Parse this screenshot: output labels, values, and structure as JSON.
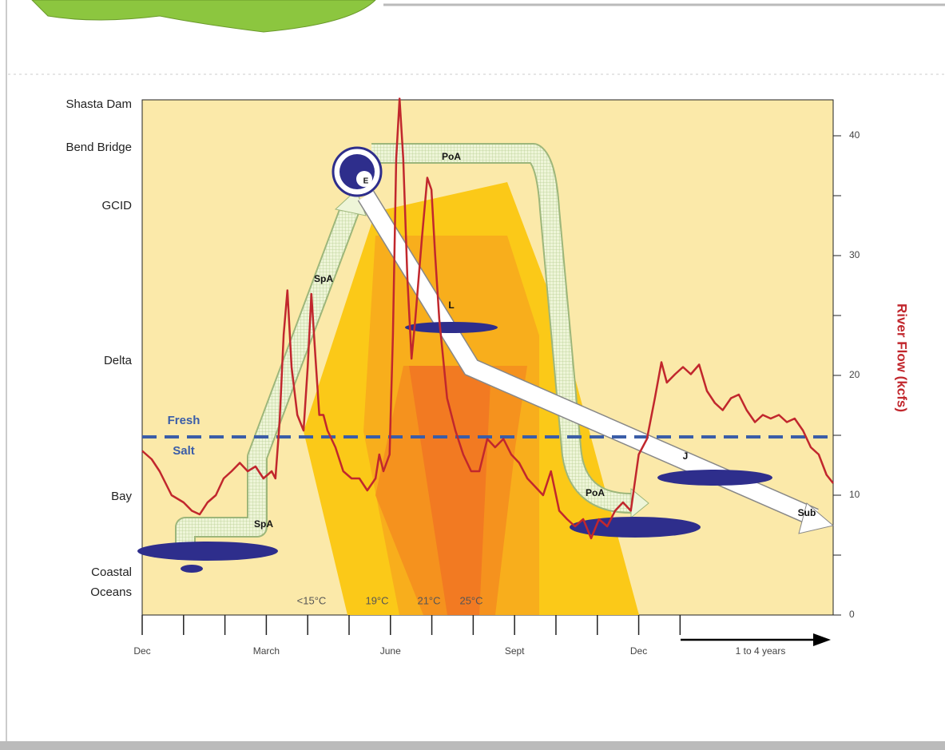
{
  "chart_data": {
    "type": "line",
    "color": "#c1272d",
    "ylabel": "River Flow (kcfs)",
    "ylim": [
      0,
      43
    ],
    "yticks": [
      0,
      10,
      20,
      30,
      40
    ],
    "yminorticks": [
      5,
      15,
      25,
      35
    ],
    "xlim": [
      0,
      16.7
    ],
    "xticks": [
      {
        "value": 0,
        "label": "Dec"
      },
      {
        "value": 3,
        "label": "March"
      },
      {
        "value": 6,
        "label": "June"
      },
      {
        "value": 9,
        "label": "Sept"
      },
      {
        "value": 12,
        "label": "Dec"
      }
    ],
    "xminorticks": [
      1,
      2,
      4,
      5,
      7,
      8,
      10,
      11,
      13
    ],
    "x_note": "1 to 4 years",
    "locations": [
      "Shasta Dam",
      "Bend Bridge",
      "GCID",
      "Delta",
      "Bay",
      "Coastal Oceans"
    ],
    "salinity_labels": [
      "Fresh",
      "Salt"
    ],
    "temperature_labels": [
      "<15°C",
      "19°C",
      "21°C",
      "25°C"
    ],
    "stage_labels": [
      "SpA",
      "SpA",
      "PoA",
      "PoA",
      "E",
      "L",
      "J",
      "Sub"
    ],
    "x": [
      0,
      0.23,
      0.42,
      0.71,
      1.0,
      1.2,
      1.39,
      1.58,
      1.78,
      1.97,
      2.16,
      2.36,
      2.55,
      2.74,
      2.93,
      3.13,
      3.22,
      3.32,
      3.42,
      3.51,
      3.61,
      3.75,
      3.9,
      4.0,
      4.09,
      4.19,
      4.28,
      4.38,
      4.48,
      4.67,
      4.86,
      5.06,
      5.25,
      5.44,
      5.64,
      5.73,
      5.83,
      5.98,
      6.06,
      6.14,
      6.22,
      6.31,
      6.41,
      6.51,
      6.6,
      6.76,
      6.89,
      6.99,
      7.08,
      7.18,
      7.37,
      7.57,
      7.76,
      7.95,
      8.15,
      8.34,
      8.53,
      8.73,
      8.92,
      9.11,
      9.31,
      9.5,
      9.69,
      9.88,
      10.08,
      10.27,
      10.46,
      10.66,
      10.85,
      11.04,
      11.24,
      11.43,
      11.62,
      11.81,
      12.0,
      12.2,
      12.39,
      12.55,
      12.68,
      12.88,
      13.07,
      13.26,
      13.46,
      13.65,
      13.84,
      14.03,
      14.23,
      14.42,
      14.61,
      14.81,
      15.0,
      15.19,
      15.39,
      15.58,
      15.77,
      15.97,
      16.16,
      16.35,
      16.54,
      16.7
    ],
    "values": [
      13.7,
      13.0,
      12.0,
      10.0,
      9.4,
      8.7,
      8.4,
      9.4,
      10.0,
      11.4,
      12.0,
      12.7,
      12.0,
      12.4,
      11.4,
      12.0,
      11.4,
      16.1,
      23.4,
      27.1,
      20.7,
      16.7,
      15.4,
      20.7,
      26.8,
      21.4,
      16.7,
      16.7,
      15.4,
      14.0,
      12.0,
      11.4,
      11.4,
      10.4,
      11.4,
      13.4,
      12.0,
      13.4,
      23.4,
      38.1,
      43.1,
      38.1,
      28.1,
      21.4,
      24.7,
      31.4,
      36.5,
      35.5,
      30.1,
      24.7,
      18.1,
      15.4,
      13.4,
      12.0,
      12.0,
      14.7,
      14.0,
      14.7,
      13.4,
      12.7,
      11.4,
      10.7,
      10.0,
      12.0,
      8.7,
      8.0,
      7.4,
      8.0,
      6.4,
      8.0,
      7.4,
      8.7,
      9.4,
      8.7,
      13.4,
      14.7,
      18.1,
      21.1,
      19.4,
      20.1,
      20.7,
      20.1,
      20.9,
      18.7,
      17.7,
      17.1,
      18.1,
      18.4,
      17.1,
      16.1,
      16.7,
      16.4,
      16.7,
      16.1,
      16.4,
      15.4,
      14.0,
      13.4,
      11.7,
      11.0
    ]
  }
}
